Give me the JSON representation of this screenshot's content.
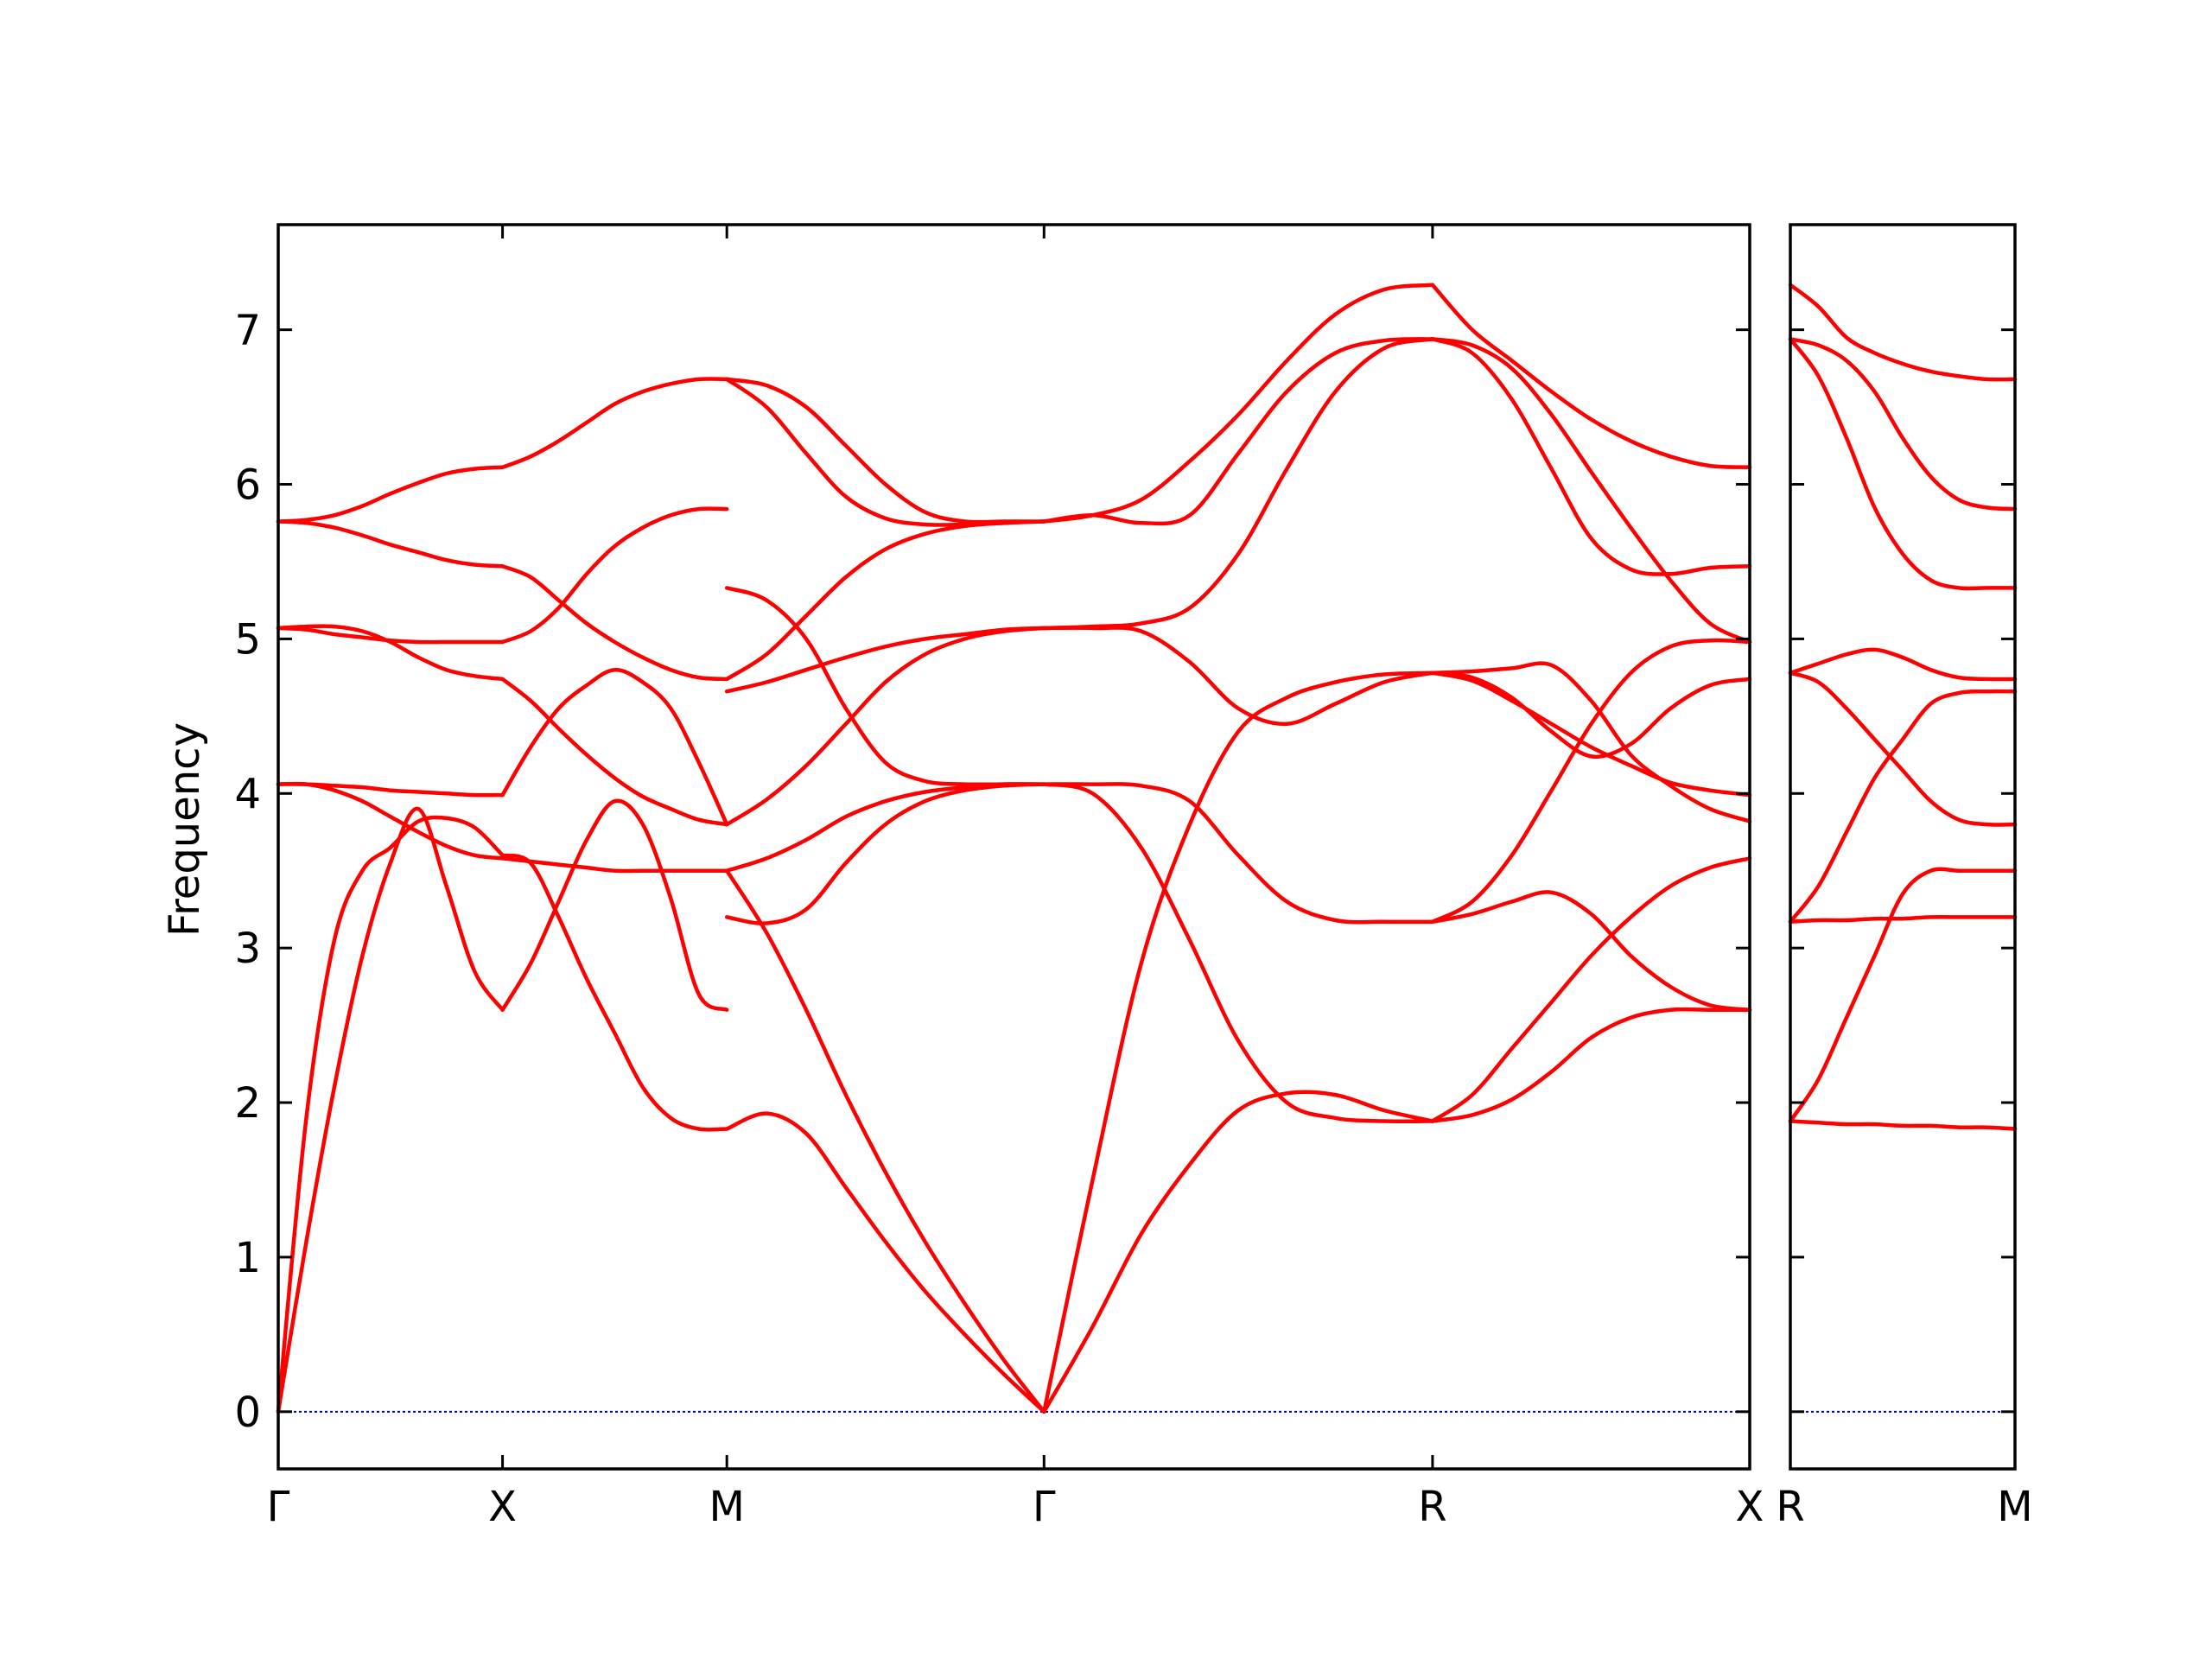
{
  "chart_data": {
    "type": "line",
    "ylabel": "Frequency",
    "ylim": [
      -0.37,
      7.68
    ],
    "yticks": [
      0,
      1,
      2,
      3,
      4,
      5,
      6,
      7
    ],
    "grid": false,
    "legend": "none",
    "colors": {
      "band": "#ff0000",
      "zero_line": "#0000cc",
      "axes": "#000000"
    },
    "panels": [
      {
        "id": "main",
        "segments": [
          {
            "from": "Γ",
            "to": "X",
            "length": 0.5,
            "samples": [
              0,
              0.125,
              0.25,
              0.375,
              0.5,
              0.625,
              0.75,
              0.875,
              1
            ],
            "bands": [
              [
                0,
                1.1,
                2.1,
                2.95,
                3.55,
                3.9,
                3.4,
                2.85,
                2.6
              ],
              [
                0,
                1.9,
                3.05,
                3.5,
                3.65,
                3.82,
                3.84,
                3.78,
                3.6
              ],
              [
                4.06,
                4.06,
                4.02,
                3.95,
                3.85,
                3.75,
                3.66,
                3.6,
                3.58
              ],
              [
                4.06,
                4.06,
                4.05,
                4.04,
                4.02,
                4.01,
                4.0,
                3.99,
                3.99
              ],
              [
                5.07,
                5.06,
                5.03,
                5.01,
                4.99,
                4.98,
                4.98,
                4.98,
                4.98
              ],
              [
                5.07,
                5.08,
                5.08,
                5.05,
                4.98,
                4.88,
                4.8,
                4.76,
                4.74
              ],
              [
                5.76,
                5.75,
                5.72,
                5.67,
                5.61,
                5.56,
                5.51,
                5.48,
                5.47
              ],
              [
                5.76,
                5.77,
                5.8,
                5.86,
                5.94,
                6.01,
                6.07,
                6.1,
                6.11
              ]
            ]
          },
          {
            "from": "X",
            "to": "M",
            "length": 0.5,
            "samples": [
              0,
              0.125,
              0.25,
              0.375,
              0.5,
              0.625,
              0.75,
              0.875,
              1
            ],
            "bands": [
              [
                2.6,
                2.9,
                3.3,
                3.7,
                3.95,
                3.8,
                3.32,
                2.7,
                2.6
              ],
              [
                3.6,
                3.55,
                3.2,
                2.8,
                2.45,
                2.1,
                1.9,
                1.83,
                1.83
              ],
              [
                3.58,
                3.56,
                3.54,
                3.52,
                3.5,
                3.5,
                3.5,
                3.5,
                3.5
              ],
              [
                3.99,
                4.3,
                4.55,
                4.7,
                4.8,
                4.72,
                4.55,
                4.2,
                3.8
              ],
              [
                4.98,
                5.05,
                5.2,
                5.42,
                5.6,
                5.72,
                5.8,
                5.84,
                5.84
              ],
              [
                4.74,
                4.6,
                4.42,
                4.25,
                4.1,
                3.98,
                3.9,
                3.83,
                3.8
              ],
              [
                5.47,
                5.4,
                5.25,
                5.1,
                4.98,
                4.88,
                4.8,
                4.75,
                4.74
              ],
              [
                6.11,
                6.18,
                6.28,
                6.4,
                6.52,
                6.6,
                6.65,
                6.68,
                6.68
              ]
            ]
          },
          {
            "from": "M",
            "to": "Γ",
            "length": 0.707,
            "samples": [
              0,
              0.125,
              0.25,
              0.375,
              0.5,
              0.625,
              0.75,
              0.875,
              1
            ],
            "bands": [
              [
                1.83,
                1.93,
                1.8,
                1.45,
                1.1,
                0.78,
                0.5,
                0.24,
                0
              ],
              [
                3.5,
                3.1,
                2.6,
                2.05,
                1.55,
                1.1,
                0.7,
                0.33,
                0
              ],
              [
                3.2,
                3.16,
                3.25,
                3.55,
                3.8,
                3.95,
                4.02,
                4.05,
                4.06
              ],
              [
                3.5,
                3.58,
                3.7,
                3.85,
                3.95,
                4.01,
                4.04,
                4.06,
                4.06
              ],
              [
                3.8,
                3.96,
                4.18,
                4.45,
                4.72,
                4.9,
                5.0,
                5.05,
                5.07
              ],
              [
                5.33,
                5.25,
                5.0,
                4.55,
                4.2,
                4.08,
                4.06,
                4.06,
                4.06
              ],
              [
                4.66,
                4.72,
                4.8,
                4.88,
                4.95,
                5.0,
                5.03,
                5.06,
                5.07
              ],
              [
                4.74,
                4.9,
                5.15,
                5.4,
                5.58,
                5.68,
                5.73,
                5.75,
                5.76
              ],
              [
                6.68,
                6.5,
                6.2,
                5.92,
                5.78,
                5.74,
                5.74,
                5.75,
                5.76
              ],
              [
                6.68,
                6.64,
                6.5,
                6.25,
                6.0,
                5.82,
                5.76,
                5.76,
                5.76
              ]
            ]
          },
          {
            "from": "Γ",
            "to": "R",
            "length": 0.866,
            "samples": [
              0,
              0.125,
              0.25,
              0.375,
              0.5,
              0.625,
              0.75,
              0.875,
              1
            ],
            "bands": [
              [
                0,
                0.55,
                1.15,
                1.6,
                1.95,
                2.06,
                2.05,
                1.95,
                1.88
              ],
              [
                0,
                1.5,
                2.9,
                3.8,
                4.4,
                4.62,
                4.72,
                4.77,
                4.78
              ],
              [
                4.06,
                4.06,
                4.05,
                3.95,
                3.6,
                3.3,
                3.18,
                3.17,
                3.17
              ],
              [
                4.06,
                4.0,
                3.65,
                3.05,
                2.4,
                2.0,
                1.9,
                1.88,
                1.88
              ],
              [
                5.07,
                5.07,
                5.05,
                4.85,
                4.55,
                4.45,
                4.58,
                4.72,
                4.78
              ],
              [
                5.07,
                5.08,
                5.1,
                5.2,
                5.55,
                6.1,
                6.6,
                6.88,
                6.94
              ],
              [
                5.76,
                5.8,
                5.75,
                5.8,
                6.2,
                6.6,
                6.85,
                6.93,
                6.94
              ],
              [
                5.76,
                5.8,
                5.9,
                6.15,
                6.45,
                6.8,
                7.1,
                7.26,
                7.29
              ]
            ]
          },
          {
            "from": "R",
            "to": "X",
            "length": 0.707,
            "samples": [
              0,
              0.125,
              0.25,
              0.375,
              0.5,
              0.625,
              0.75,
              0.875,
              1
            ],
            "bands": [
              [
                1.88,
                1.92,
                2.02,
                2.2,
                2.42,
                2.55,
                2.6,
                2.6,
                2.6
              ],
              [
                1.88,
                2.05,
                2.35,
                2.65,
                2.95,
                3.2,
                3.4,
                3.52,
                3.58
              ],
              [
                3.17,
                3.22,
                3.3,
                3.36,
                3.22,
                2.95,
                2.75,
                2.63,
                2.6
              ],
              [
                3.17,
                3.3,
                3.6,
                4.02,
                4.45,
                4.78,
                4.95,
                4.99,
                4.98
              ],
              [
                4.78,
                4.79,
                4.81,
                4.83,
                4.6,
                4.25,
                4.05,
                3.9,
                3.82
              ],
              [
                4.78,
                4.75,
                4.62,
                4.4,
                4.24,
                4.32,
                4.55,
                4.7,
                4.74
              ],
              [
                4.78,
                4.73,
                4.6,
                4.45,
                4.3,
                4.18,
                4.07,
                4.02,
                3.99
              ],
              [
                6.94,
                6.85,
                6.55,
                6.1,
                5.65,
                5.45,
                5.42,
                5.46,
                5.47
              ],
              [
                6.94,
                6.9,
                6.75,
                6.45,
                6.08,
                5.72,
                5.38,
                5.1,
                4.98
              ],
              [
                7.29,
                7.0,
                6.8,
                6.6,
                6.42,
                6.28,
                6.18,
                6.12,
                6.11
              ]
            ]
          }
        ],
        "labels": [
          {
            "pos": 0,
            "text": "Γ"
          },
          {
            "pos": 0.5,
            "text": "X"
          },
          {
            "pos": 1.0,
            "text": "M"
          },
          {
            "pos": 1.707,
            "text": "Γ"
          },
          {
            "pos": 2.573,
            "text": "R"
          },
          {
            "pos": 3.28,
            "text": "X"
          }
        ]
      },
      {
        "id": "side",
        "segments": [
          {
            "from": "R",
            "to": "M",
            "length": 0.5,
            "samples": [
              0,
              0.125,
              0.25,
              0.375,
              0.5,
              0.625,
              0.75,
              0.875,
              1
            ],
            "bands": [
              [
                1.88,
                1.87,
                1.86,
                1.86,
                1.85,
                1.85,
                1.84,
                1.84,
                1.83
              ],
              [
                1.88,
                2.15,
                2.55,
                2.95,
                3.35,
                3.5,
                3.5,
                3.5,
                3.5
              ],
              [
                3.17,
                3.18,
                3.18,
                3.19,
                3.19,
                3.2,
                3.2,
                3.2,
                3.2
              ],
              [
                3.17,
                3.4,
                3.75,
                4.1,
                4.35,
                4.58,
                4.65,
                4.66,
                4.66
              ],
              [
                4.78,
                4.72,
                4.55,
                4.35,
                4.15,
                3.95,
                3.83,
                3.8,
                3.8
              ],
              [
                4.78,
                4.84,
                4.9,
                4.93,
                4.88,
                4.8,
                4.75,
                4.74,
                4.74
              ],
              [
                6.94,
                6.7,
                6.3,
                5.85,
                5.55,
                5.38,
                5.33,
                5.33,
                5.33
              ],
              [
                6.94,
                6.9,
                6.8,
                6.6,
                6.3,
                6.05,
                5.9,
                5.85,
                5.84
              ],
              [
                7.29,
                7.15,
                6.95,
                6.85,
                6.78,
                6.73,
                6.7,
                6.68,
                6.68
              ]
            ]
          }
        ],
        "labels": [
          {
            "pos": 0,
            "text": "R"
          },
          {
            "pos": 0.5,
            "text": "M"
          }
        ]
      }
    ]
  }
}
